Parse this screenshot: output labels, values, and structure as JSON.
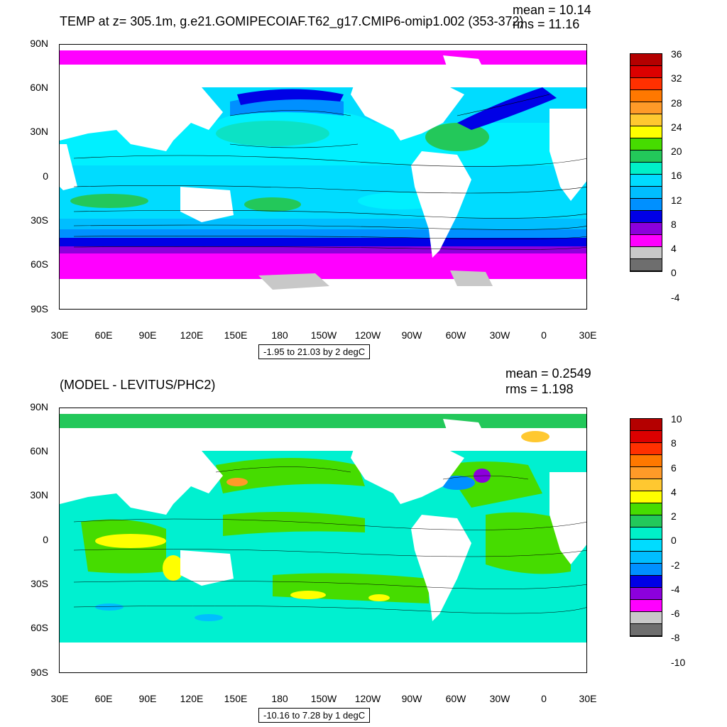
{
  "top": {
    "title": "TEMP at z= 305.1m, g.e21.GOMIPECOIAF.T62_g17.CMIP6-omip1.002 (353-372)",
    "mean": "mean = 10.14",
    "rms": "rms = 11.16",
    "range_note": "-1.95 to 21.03 by 2 degC",
    "colorbar": {
      "labels": [
        "36",
        "32",
        "28",
        "24",
        "20",
        "16",
        "12",
        "8",
        "4",
        "0",
        "-4"
      ],
      "colors": [
        "#b40000",
        "#dc0000",
        "#ff3000",
        "#ff7800",
        "#ff9a28",
        "#ffc830",
        "#ffff00",
        "#46dc00",
        "#23c85a",
        "#00f0c8",
        "#00dcff",
        "#00beff",
        "#0090ff",
        "#0000e6",
        "#8c00dc",
        "#ff00ff",
        "#c8c8c8",
        "#6e6e6e"
      ]
    }
  },
  "bottom": {
    "title": "(MODEL - LEVITUS/PHC2)",
    "mean": "mean = 0.2549",
    "rms": "rms = 1.198",
    "range_note": "-10.16 to 7.28 by 1 degC",
    "colorbar": {
      "labels": [
        "10",
        "8",
        "6",
        "4",
        "2",
        "0",
        "-2",
        "-4",
        "-6",
        "-8",
        "-10"
      ],
      "colors": [
        "#b40000",
        "#dc0000",
        "#ff3000",
        "#ff7800",
        "#ff9a28",
        "#ffc830",
        "#ffff00",
        "#46dc00",
        "#23c85a",
        "#00f0c8",
        "#00dcff",
        "#00beff",
        "#0090ff",
        "#0000e6",
        "#8c00dc",
        "#ff00ff",
        "#c8c8c8",
        "#6e6e6e"
      ]
    }
  },
  "axes": {
    "lat_labels": [
      "90N",
      "60N",
      "30N",
      "0",
      "30S",
      "60S",
      "90S"
    ],
    "lon_labels": [
      "30E",
      "60E",
      "90E",
      "120E",
      "150E",
      "180",
      "150W",
      "120W",
      "90W",
      "60W",
      "30W",
      "0",
      "30E"
    ]
  },
  "colors": {
    "polar": "#ff00ff",
    "subpolar": "#0000e6",
    "midlat": "#00beff",
    "warm": "#00f0ff",
    "green": "#23c85a",
    "land": "#ffffff",
    "ice": "#c8c8c8",
    "anomaly_base": "#00f0d0",
    "anomaly_pos": "#46dc00",
    "anomaly_warm": "#ffff00"
  }
}
